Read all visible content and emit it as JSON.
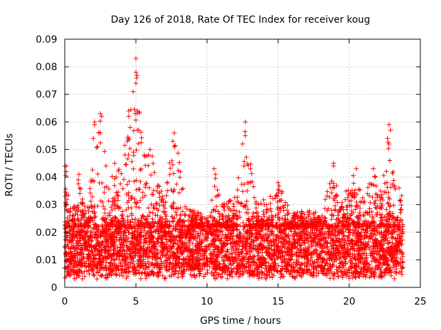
{
  "chart_data": {
    "type": "scatter",
    "title": "Day 126 of 2018, Rate Of TEC Index for receiver koug",
    "xlabel": "GPS time / hours",
    "ylabel": "ROTI / TECUs",
    "xlim": [
      0,
      25
    ],
    "ylim": [
      0,
      0.09
    ],
    "xticks": [
      0,
      5,
      10,
      15,
      20,
      25
    ],
    "xtick_labels": [
      "0",
      "5",
      "10",
      "15",
      "20",
      "25"
    ],
    "yticks": [
      0,
      0.01,
      0.02,
      0.03,
      0.04,
      0.05,
      0.06,
      0.07,
      0.08,
      0.09
    ],
    "ytick_labels": [
      "0",
      "0.01",
      "0.02",
      "0.03",
      "0.04",
      "0.05",
      "0.06",
      "0.07",
      "0.08",
      "0.09"
    ],
    "grid": true,
    "marker": "plus",
    "color": "#ff0000",
    "x_data_range": [
      0,
      23.8
    ],
    "baseline_band": [
      0.005,
      0.022
    ],
    "envelope": [
      [
        0.0,
        0.045
      ],
      [
        0.5,
        0.026
      ],
      [
        1.0,
        0.041
      ],
      [
        1.5,
        0.027
      ],
      [
        2.0,
        0.045
      ],
      [
        2.5,
        0.063
      ],
      [
        3.0,
        0.04
      ],
      [
        3.5,
        0.046
      ],
      [
        4.0,
        0.042
      ],
      [
        4.5,
        0.064
      ],
      [
        5.0,
        0.083
      ],
      [
        5.5,
        0.05
      ],
      [
        6.0,
        0.051
      ],
      [
        6.5,
        0.04
      ],
      [
        7.0,
        0.032
      ],
      [
        7.5,
        0.05
      ],
      [
        7.8,
        0.056
      ],
      [
        8.5,
        0.03
      ],
      [
        9.0,
        0.028
      ],
      [
        10.0,
        0.026
      ],
      [
        10.5,
        0.043
      ],
      [
        11.0,
        0.03
      ],
      [
        12.0,
        0.033
      ],
      [
        12.7,
        0.06
      ],
      [
        13.5,
        0.03
      ],
      [
        14.0,
        0.032
      ],
      [
        15.0,
        0.038
      ],
      [
        16.0,
        0.027
      ],
      [
        17.0,
        0.028
      ],
      [
        18.0,
        0.027
      ],
      [
        18.9,
        0.045
      ],
      [
        19.5,
        0.032
      ],
      [
        20.5,
        0.043
      ],
      [
        21.0,
        0.032
      ],
      [
        21.7,
        0.043
      ],
      [
        22.3,
        0.036
      ],
      [
        22.8,
        0.059
      ],
      [
        23.3,
        0.037
      ],
      [
        23.8,
        0.036
      ]
    ],
    "notable_points": [
      {
        "x": 0.1,
        "y": 0.044
      },
      {
        "x": 0.1,
        "y": 0.042
      },
      {
        "x": 1.0,
        "y": 0.041
      },
      {
        "x": 2.1,
        "y": 0.06
      },
      {
        "x": 2.1,
        "y": 0.059
      },
      {
        "x": 2.5,
        "y": 0.063
      },
      {
        "x": 2.6,
        "y": 0.062
      },
      {
        "x": 2.4,
        "y": 0.056
      },
      {
        "x": 2.0,
        "y": 0.054
      },
      {
        "x": 4.5,
        "y": 0.064
      },
      {
        "x": 4.5,
        "y": 0.062
      },
      {
        "x": 4.6,
        "y": 0.058
      },
      {
        "x": 4.4,
        "y": 0.053
      },
      {
        "x": 5.0,
        "y": 0.083
      },
      {
        "x": 5.0,
        "y": 0.078
      },
      {
        "x": 5.05,
        "y": 0.076
      },
      {
        "x": 5.0,
        "y": 0.074
      },
      {
        "x": 5.1,
        "y": 0.064
      },
      {
        "x": 4.95,
        "y": 0.063
      },
      {
        "x": 5.2,
        "y": 0.057
      },
      {
        "x": 6.0,
        "y": 0.05
      },
      {
        "x": 5.9,
        "y": 0.048
      },
      {
        "x": 7.7,
        "y": 0.056
      },
      {
        "x": 7.6,
        "y": 0.053
      },
      {
        "x": 7.7,
        "y": 0.051
      },
      {
        "x": 10.5,
        "y": 0.043
      },
      {
        "x": 10.6,
        "y": 0.041
      },
      {
        "x": 12.7,
        "y": 0.06
      },
      {
        "x": 12.7,
        "y": 0.055
      },
      {
        "x": 12.6,
        "y": 0.044
      },
      {
        "x": 15.0,
        "y": 0.038
      },
      {
        "x": 18.9,
        "y": 0.045
      },
      {
        "x": 18.9,
        "y": 0.044
      },
      {
        "x": 20.5,
        "y": 0.043
      },
      {
        "x": 21.7,
        "y": 0.043
      },
      {
        "x": 22.8,
        "y": 0.059
      },
      {
        "x": 22.9,
        "y": 0.057
      },
      {
        "x": 22.7,
        "y": 0.054
      },
      {
        "x": 22.8,
        "y": 0.052
      },
      {
        "x": 22.85,
        "y": 0.046
      },
      {
        "x": 23.5,
        "y": 0.036
      }
    ]
  }
}
